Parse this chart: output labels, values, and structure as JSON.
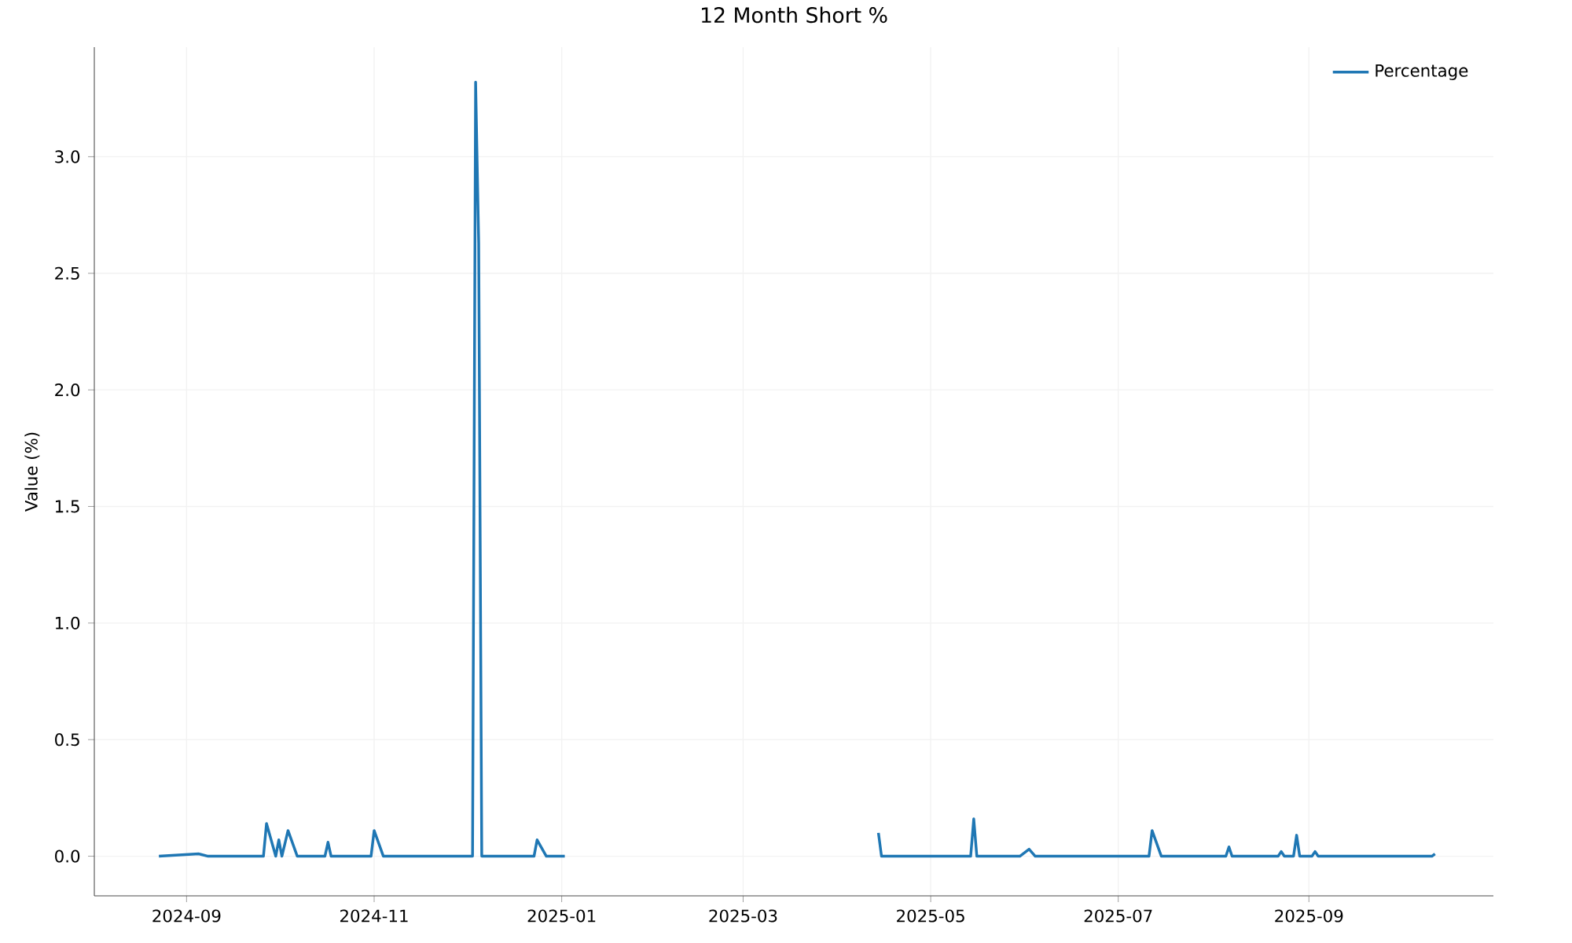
{
  "chart_data": {
    "type": "line",
    "title": "12 Month Short %",
    "ylabel": "Value (%)",
    "x": [
      "2024-08-23",
      "2024-09-05",
      "2024-09-08",
      "2024-09-26",
      "2024-09-27",
      "2024-09-30",
      "2024-10-01",
      "2024-10-02",
      "2024-10-04",
      "2024-10-07",
      "2024-10-16",
      "2024-10-17",
      "2024-10-18",
      "2024-10-31",
      "2024-11-01",
      "2024-11-04",
      "2024-12-03",
      "2024-12-04",
      "2024-12-05",
      "2024-12-06",
      "2024-12-23",
      "2024-12-24",
      "2024-12-27",
      "2025-01-02",
      "2025-02-15",
      "2025-04-14",
      "2025-04-15",
      "2025-05-14",
      "2025-05-15",
      "2025-05-16",
      "2025-05-30",
      "2025-06-02",
      "2025-06-04",
      "2025-07-11",
      "2025-07-12",
      "2025-07-15",
      "2025-08-05",
      "2025-08-06",
      "2025-08-07",
      "2025-08-22",
      "2025-08-23",
      "2025-08-24",
      "2025-08-27",
      "2025-08-28",
      "2025-08-29",
      "2025-09-02",
      "2025-09-03",
      "2025-09-04",
      "2025-10-11",
      "2025-10-12"
    ],
    "series": [
      {
        "name": "Percentage",
        "color": "#1f77b4",
        "values": [
          0,
          0.01,
          0,
          0,
          0.14,
          0,
          0.07,
          0,
          0.11,
          0,
          0,
          0.06,
          0,
          0,
          0.11,
          0,
          0,
          3.32,
          2.63,
          0,
          0,
          0.07,
          0,
          0,
          null,
          0.1,
          0,
          0,
          0.16,
          0,
          0,
          0.03,
          0,
          0,
          0.11,
          0,
          0,
          0.04,
          0,
          0,
          0.02,
          0,
          0,
          0.09,
          0,
          0,
          0.02,
          0,
          0,
          0.01
        ]
      }
    ],
    "xlim": [
      "2024-08-02",
      "2025-10-31"
    ],
    "xticks": [
      "2024-09",
      "2024-11",
      "2025-01",
      "2025-03",
      "2025-05",
      "2025-07",
      "2025-09"
    ],
    "ylim": [
      -0.17,
      3.47
    ],
    "yticks": [
      {
        "value": 0,
        "label": "0.0"
      },
      0.5,
      {
        "value": 1,
        "label": "1.0"
      },
      1.5,
      {
        "value": 2,
        "label": "2.0"
      },
      2.5,
      {
        "value": 3,
        "label": "3.0"
      }
    ],
    "grid": true,
    "legend": "top right",
    "marker": "none",
    "line_style": "solid"
  }
}
